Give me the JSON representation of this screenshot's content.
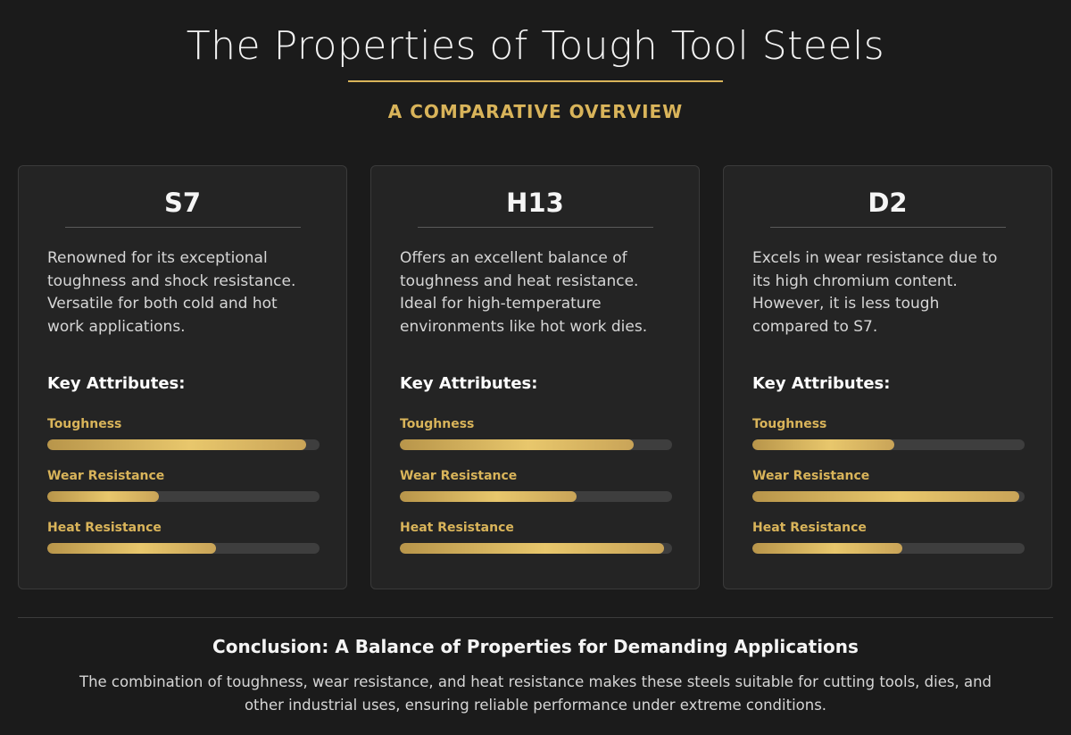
{
  "header": {
    "title": "The Properties of Tough Tool Steels",
    "subtitle": "A COMPARATIVE OVERVIEW",
    "accent_color": "#d9b45a"
  },
  "cards": [
    {
      "name": "S7",
      "description": "Renowned for its exceptional toughness and shock resistance. Versatile for both cold and hot work applications.",
      "attributes_heading": "Key Attributes:",
      "attributes": [
        {
          "label": "Toughness",
          "level": 0.95
        },
        {
          "label": "Wear Resistance",
          "level": 0.41
        },
        {
          "label": "Heat Resistance",
          "level": 0.62
        }
      ]
    },
    {
      "name": "H13",
      "description": "Offers an excellent balance of toughness and heat resistance. Ideal for high-temperature environments like hot work dies.",
      "attributes_heading": "Key Attributes:",
      "attributes": [
        {
          "label": "Toughness",
          "level": 0.86
        },
        {
          "label": "Wear Resistance",
          "level": 0.65
        },
        {
          "label": "Heat Resistance",
          "level": 0.97
        }
      ]
    },
    {
      "name": "D2",
      "description": "Excels in wear resistance due to its high chromium content. However, it is less tough compared to S7.",
      "attributes_heading": "Key Attributes:",
      "attributes": [
        {
          "label": "Toughness",
          "level": 0.52
        },
        {
          "label": "Wear Resistance",
          "level": 0.98
        },
        {
          "label": "Heat Resistance",
          "level": 0.55
        }
      ]
    }
  ],
  "conclusion": {
    "title": "Conclusion: A Balance of Properties for Demanding Applications",
    "text": "The combination of toughness, wear resistance, and heat resistance makes these steels suitable for cutting tools, dies, and other industrial uses, ensuring reliable performance under extreme conditions."
  }
}
